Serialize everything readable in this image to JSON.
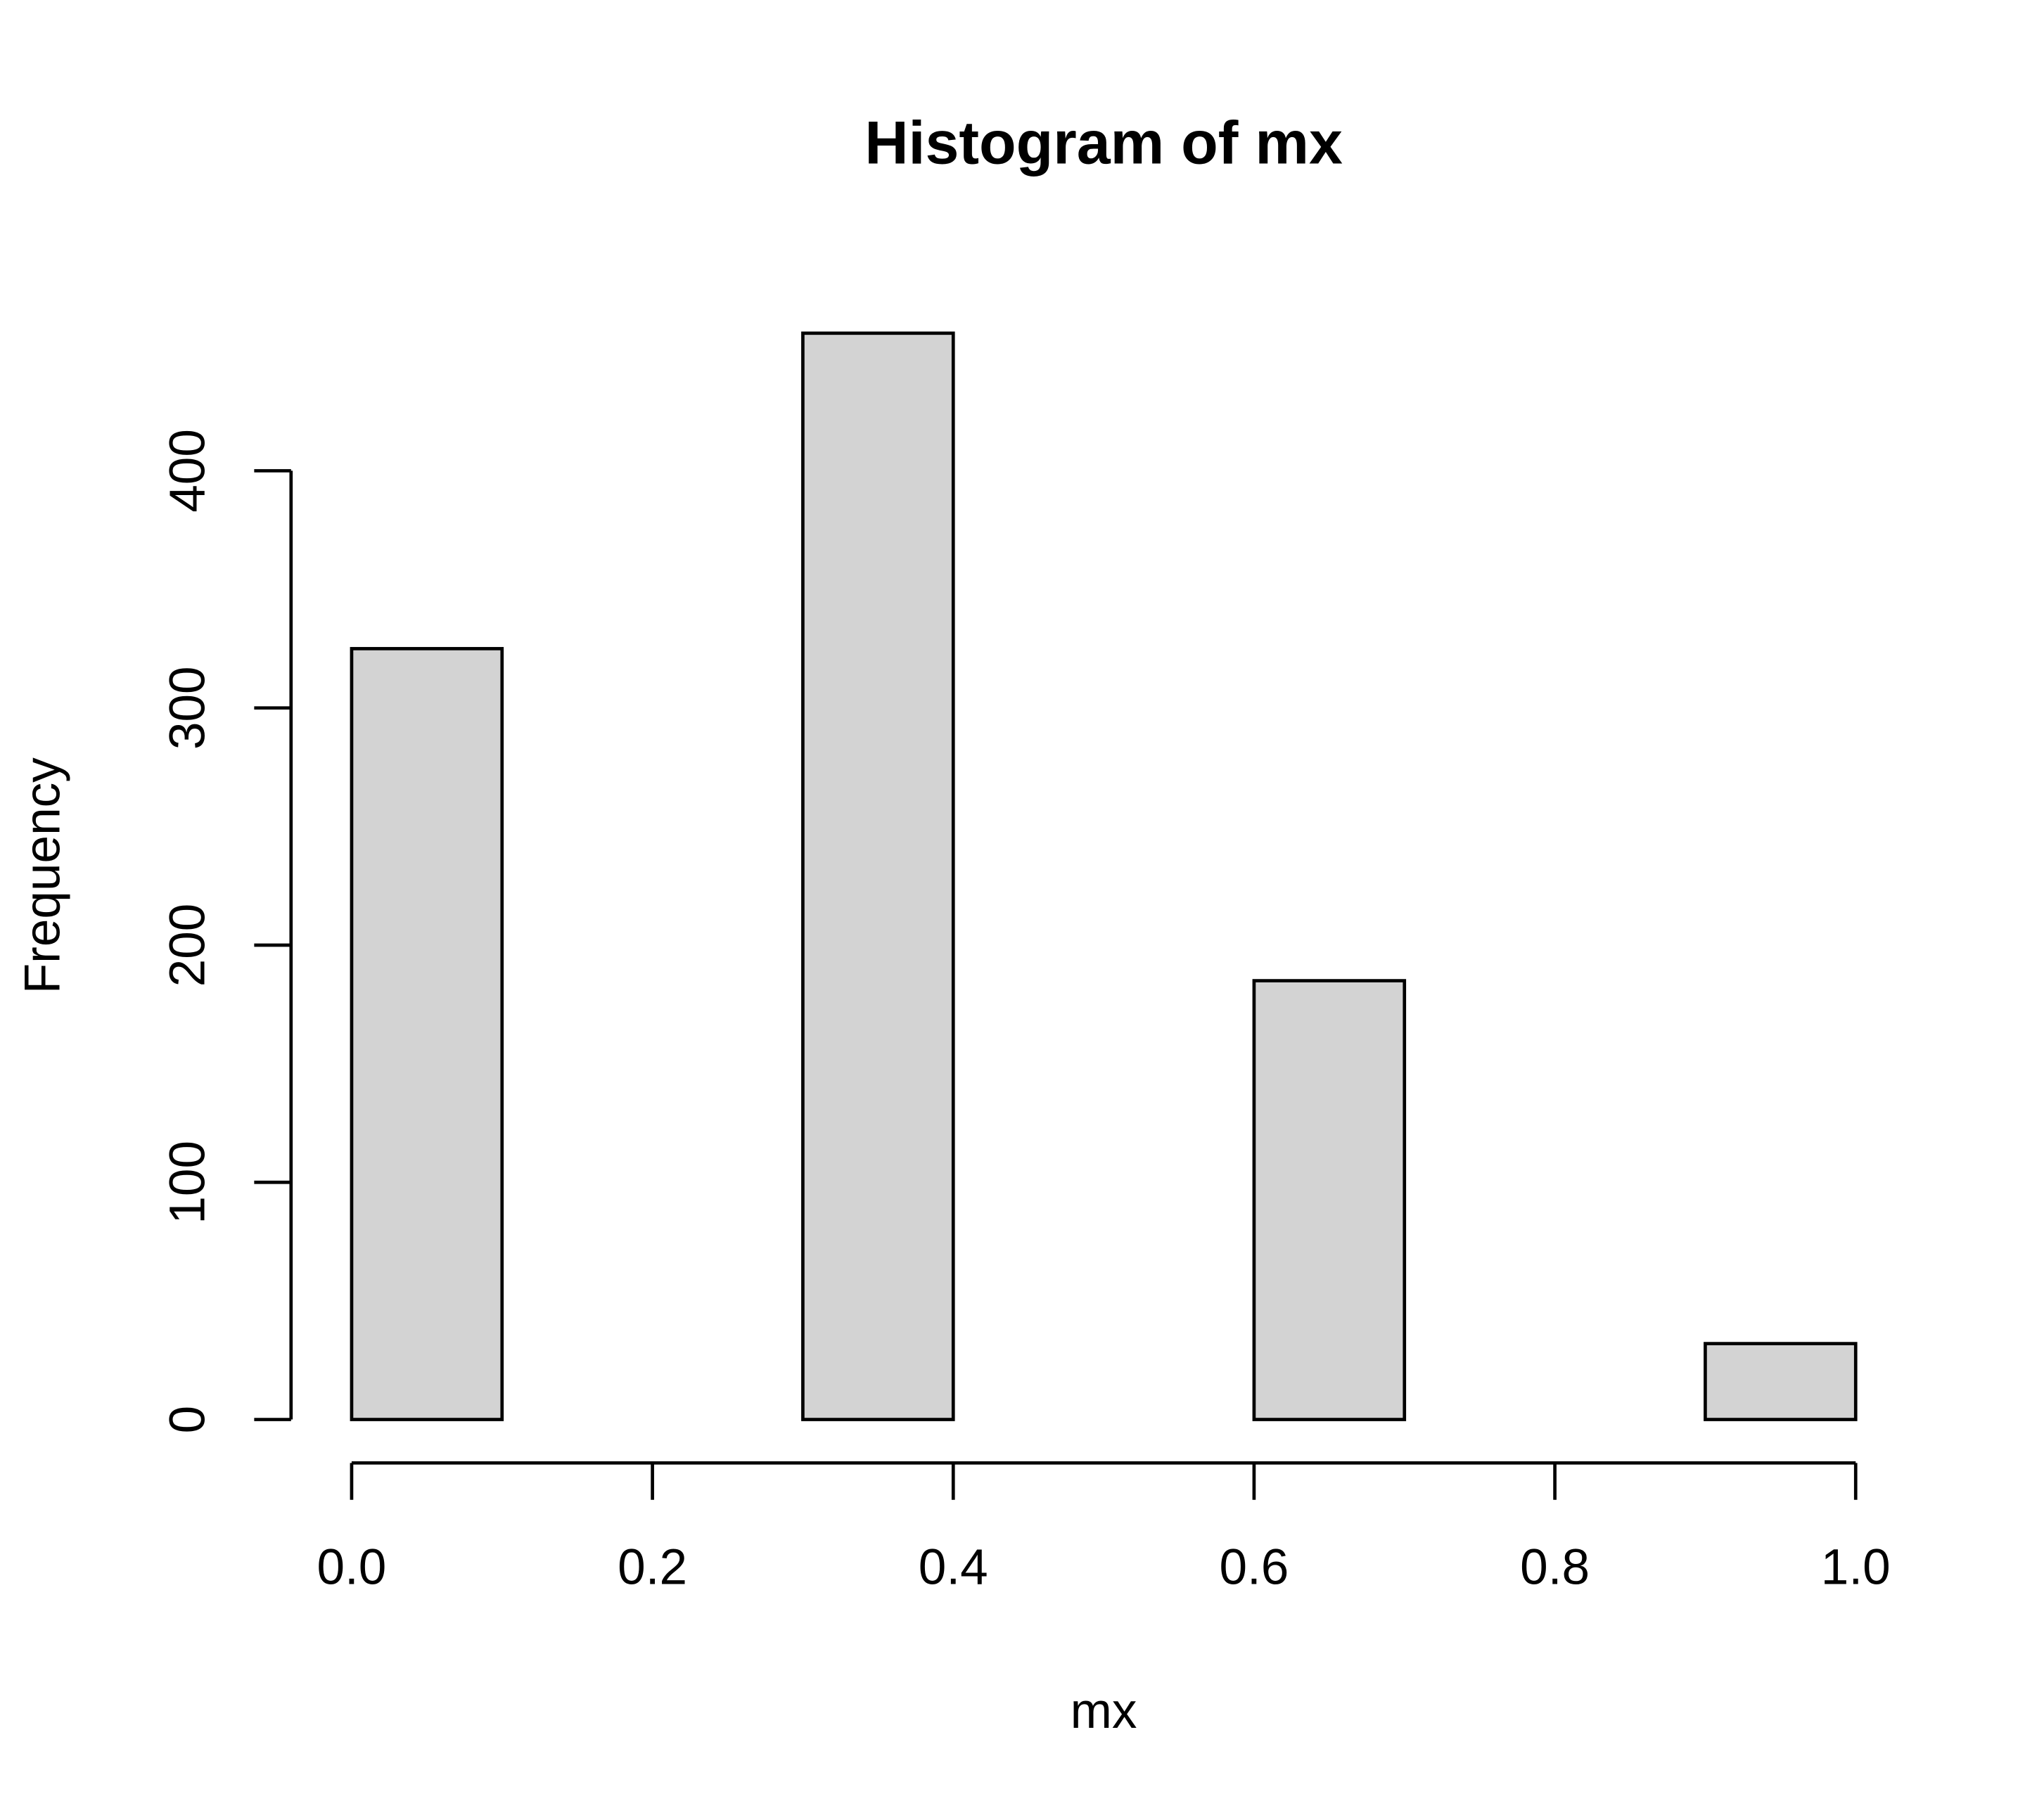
{
  "chart_data": {
    "type": "histogram",
    "title": "Histogram of mx",
    "x_label": "mx",
    "y_label": "Frequency",
    "bins": [
      0,
      0.1,
      0.2,
      0.3,
      0.4,
      0.5,
      0.6,
      0.7,
      0.8,
      0.9,
      1
    ],
    "counts": [
      325,
      0,
      0,
      458,
      0,
      0,
      185,
      0,
      0,
      32
    ],
    "color": "#d3d3d3",
    "xlim": [
      0,
      1
    ],
    "ylim": [
      0,
      458
    ],
    "xticks": [
      {
        "value": 0,
        "label": "0.0"
      },
      {
        "value": 0.2,
        "label": "0.2"
      },
      {
        "value": 0.4,
        "label": "0.4"
      },
      {
        "value": 0.6,
        "label": "0.6"
      },
      {
        "value": 0.8,
        "label": "0.8"
      },
      {
        "value": 1,
        "label": "1.0"
      }
    ],
    "yticks": [
      0,
      100,
      200,
      300,
      400
    ]
  }
}
